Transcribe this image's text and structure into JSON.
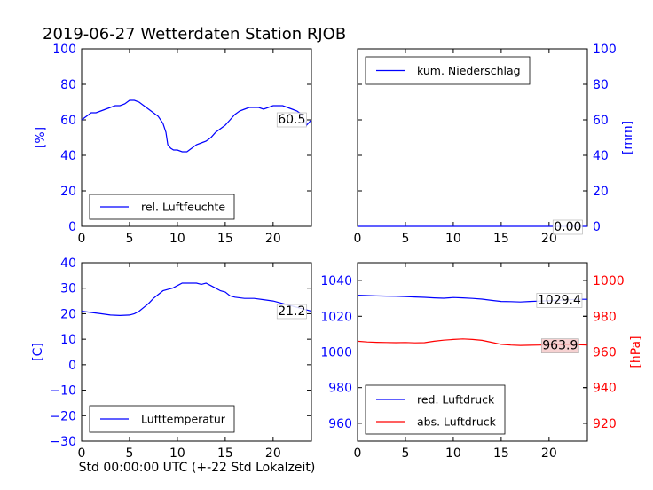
{
  "title": "2019-06-27 Wetterdaten Station RJOB",
  "xlabel": "Std 00:00:00 UTC (+-22 Std Lokalzeit)",
  "colors": {
    "blue": "#0000ff",
    "red": "#ff0000",
    "black": "#000000",
    "highlight": "#f4c9c9"
  },
  "chart_data": [
    {
      "type": "line",
      "id": "humidity",
      "ylabel": "[%]",
      "ylabel_side": "left",
      "xlim": [
        0,
        24
      ],
      "ylim": [
        0,
        100
      ],
      "xticks": [
        0,
        5,
        10,
        15,
        20
      ],
      "yticks": [
        0,
        20,
        40,
        60,
        80,
        100
      ],
      "legend_position": "lower-left",
      "series": [
        {
          "name": "rel. Luftfeuchte",
          "color": "#0000ff",
          "x": [
            0,
            0.5,
            1,
            1.5,
            2,
            2.5,
            3,
            3.5,
            4,
            4.5,
            5,
            5.5,
            6,
            6.5,
            7,
            7.5,
            8,
            8.5,
            8.8,
            9,
            9.3,
            9.6,
            10,
            10.5,
            11,
            11.5,
            12,
            12.5,
            13,
            13.5,
            14,
            14.5,
            15,
            15.5,
            16,
            16.5,
            17,
            17.5,
            18,
            18.5,
            19,
            19.5,
            20,
            20.5,
            21,
            21.5,
            22,
            22.5,
            23,
            23.5,
            24
          ],
          "y": [
            60,
            62,
            64,
            64,
            65,
            66,
            67,
            68,
            68,
            69,
            71,
            71,
            70,
            68,
            66,
            64,
            62,
            58,
            53,
            46,
            44,
            43,
            43,
            42,
            42,
            44,
            46,
            47,
            48,
            50,
            53,
            55,
            57,
            60,
            63,
            65,
            66,
            67,
            67,
            67,
            66,
            67,
            68,
            68,
            68,
            67,
            66,
            65,
            63,
            57,
            60
          ]
        }
      ],
      "annotation": {
        "text": "60.5",
        "x": 20.5,
        "y": 60.5
      }
    },
    {
      "type": "line",
      "id": "precipitation",
      "ylabel": "[mm]",
      "ylabel_side": "right",
      "xlim": [
        0,
        24
      ],
      "ylim": [
        0,
        100
      ],
      "xticks": [
        0,
        5,
        10,
        15,
        20
      ],
      "yticks": [
        0,
        20,
        40,
        60,
        80,
        100
      ],
      "legend_position": "upper-left",
      "series": [
        {
          "name": "kum. Niederschlag",
          "color": "#0000ff",
          "x": [
            0,
            24
          ],
          "y": [
            0,
            0
          ]
        }
      ],
      "annotation": {
        "text": "0.00",
        "x": 20.5,
        "y": 0
      }
    },
    {
      "type": "line",
      "id": "temperature",
      "ylabel": "[C]",
      "ylabel_side": "left",
      "xlim": [
        0,
        24
      ],
      "ylim": [
        -30,
        40
      ],
      "xticks": [
        0,
        5,
        10,
        15,
        20
      ],
      "yticks": [
        -30,
        -20,
        -10,
        0,
        10,
        20,
        30,
        40
      ],
      "legend_position": "lower-left",
      "series": [
        {
          "name": "Lufttemperatur",
          "color": "#0000ff",
          "x": [
            0,
            1,
            2,
            3,
            4,
            5,
            5.5,
            6,
            6.5,
            7,
            7.5,
            8,
            8.5,
            9,
            9.5,
            10,
            10.5,
            11,
            11.5,
            12,
            12.5,
            13,
            13.5,
            14,
            14.5,
            15,
            15.5,
            16,
            17,
            18,
            19,
            20,
            21,
            22,
            23,
            24
          ],
          "y": [
            21,
            20.5,
            20,
            19.5,
            19.3,
            19.5,
            20,
            21,
            22.5,
            24,
            26,
            27.5,
            29,
            29.5,
            30,
            31,
            32,
            32,
            32,
            32,
            31.5,
            32,
            31,
            30,
            29,
            28.5,
            27,
            26.5,
            26,
            26,
            25.5,
            25,
            24,
            23,
            22,
            21
          ]
        }
      ],
      "annotation": {
        "text": "21.2",
        "x": 20.5,
        "y": 21.2
      }
    },
    {
      "type": "line",
      "id": "pressure",
      "ylabel": "[hPa]",
      "ylabel_side": "right",
      "xlim": [
        0,
        24
      ],
      "ylim": [
        950,
        1050
      ],
      "ylim_right": [
        910,
        1010
      ],
      "xticks": [
        0,
        5,
        10,
        15,
        20
      ],
      "yticks": [
        960,
        980,
        1000,
        1020,
        1040
      ],
      "yticks_right": [
        920,
        940,
        960,
        980,
        1000
      ],
      "legend_position": "lower-left",
      "series": [
        {
          "name": "red. Luftdruck",
          "color": "#0000ff",
          "axis": "left",
          "x": [
            0,
            1,
            2,
            3,
            4,
            5,
            6,
            7,
            8,
            9,
            10,
            11,
            12,
            13,
            14,
            15,
            16,
            17,
            18,
            19,
            20,
            21,
            22,
            23,
            24
          ],
          "y": [
            1031.8,
            1031.6,
            1031.4,
            1031.3,
            1031.2,
            1031,
            1030.8,
            1030.6,
            1030.3,
            1030.1,
            1030.5,
            1030.3,
            1030,
            1029.6,
            1028.9,
            1028.3,
            1028.2,
            1028,
            1028.3,
            1028.5,
            1028.7,
            1029,
            1029.2,
            1029.5,
            1029.5
          ]
        },
        {
          "name": "abs. Luftdruck",
          "color": "#ff0000",
          "axis": "right",
          "x": [
            0,
            1,
            2,
            3,
            4,
            5,
            6,
            7,
            8,
            9,
            10,
            11,
            12,
            13,
            14,
            15,
            16,
            17,
            18,
            19,
            20,
            21,
            22,
            23,
            24
          ],
          "y": [
            966,
            965.6,
            965.4,
            965.3,
            965.2,
            965.3,
            965.1,
            965.2,
            966,
            966.6,
            967,
            967.3,
            967,
            966.5,
            965.4,
            964.3,
            963.9,
            963.7,
            963.8,
            963.9,
            964,
            964.1,
            964.2,
            964.1,
            963.9
          ]
        }
      ],
      "annotation": {
        "text": "1029.4",
        "x": 18.8,
        "y": 1029.4
      },
      "annotation_right": {
        "text": "963.9",
        "x": 19.3,
        "y": 963.9
      }
    }
  ]
}
